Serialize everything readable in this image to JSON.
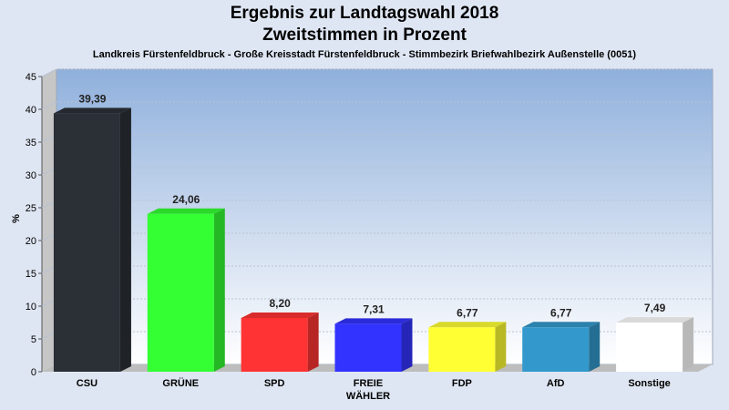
{
  "chart_data": {
    "type": "bar",
    "title": "Ergebnis zur Landtagswahl 2018",
    "subtitle": "Zweitstimmen in Prozent",
    "caption": "Landkreis Fürstenfeldbruck - Große Kreisstadt Fürstenfeldbruck - Stimmbezirk Briefwahlbezirk Außenstelle (0051)",
    "ylabel": "%",
    "ylim": [
      0,
      45
    ],
    "yticks": [
      "0",
      "5",
      "10",
      "15",
      "20",
      "25",
      "30",
      "35",
      "40",
      "45"
    ],
    "grid": true,
    "categories": [
      "CSU",
      "GRÜNE",
      "SPD",
      "FREIE WÄHLER",
      "FDP",
      "AfD",
      "Sonstige"
    ],
    "category_lines": [
      [
        "CSU"
      ],
      [
        "GRÜNE"
      ],
      [
        "SPD"
      ],
      [
        "FREIE",
        "WÄHLER"
      ],
      [
        "FDP"
      ],
      [
        "AfD"
      ],
      [
        "Sonstige"
      ]
    ],
    "values": [
      39.39,
      24.06,
      8.2,
      7.31,
      6.77,
      6.77,
      7.49
    ],
    "value_labels": [
      "39,39",
      "24,06",
      "8,20",
      "7,31",
      "6,77",
      "6,77",
      "7,49"
    ],
    "colors": [
      "#2b2f36",
      "#33ff33",
      "#ff3333",
      "#3333ff",
      "#ffff33",
      "#3399cc",
      "#ffffff"
    ]
  }
}
